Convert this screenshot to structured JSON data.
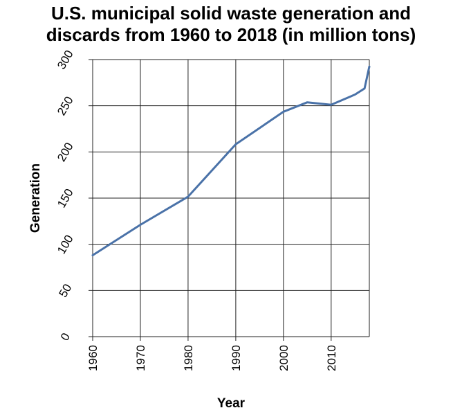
{
  "chart_data": {
    "type": "line",
    "title_lines": [
      "U.S. municipal solid waste generation and",
      "discards from 1960 to 2018 (in million tons)"
    ],
    "xlabel": "Year",
    "ylabel": "Generation",
    "xlim": [
      1960,
      2018
    ],
    "ylim": [
      0,
      300
    ],
    "x_ticks": [
      "1960",
      "1970",
      "1980",
      "1990",
      "2000",
      "2010"
    ],
    "y_ticks": [
      "0",
      "50",
      "100",
      "150",
      "200",
      "250",
      "300"
    ],
    "grid": true,
    "line_color": "#4a72a8",
    "series": [
      {
        "x": [
          1960,
          1970,
          1980,
          1990,
          2000,
          2005,
          2010,
          2015,
          2017,
          2018
        ],
        "values": [
          88.1,
          121.1,
          151.6,
          208.3,
          243.5,
          253.7,
          251.1,
          262.1,
          268.7,
          292.4
        ]
      }
    ]
  }
}
